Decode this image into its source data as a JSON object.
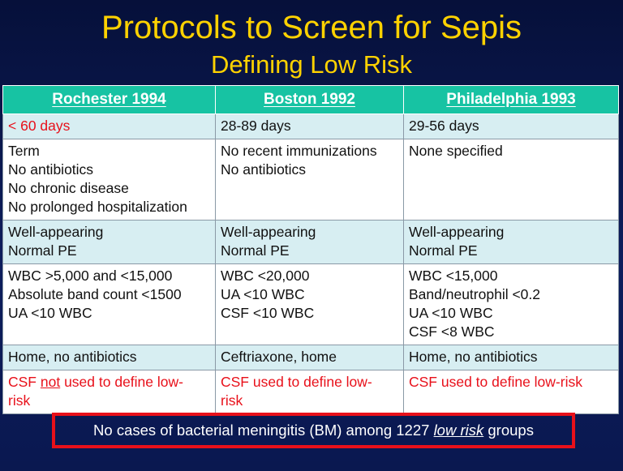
{
  "slide": {
    "title": "Protocols to Screen for Sepis",
    "subtitle": "Defining Low Risk"
  },
  "table": {
    "headers": [
      "Rochester 1994",
      "Boston 1992",
      "Philadelphia 1993"
    ],
    "rows": [
      [
        "< 60 days",
        "28-89 days",
        "29-56 days"
      ],
      [
        "Term\nNo antibiotics\nNo chronic disease\nNo prolonged hospitalization",
        "No recent immunizations\nNo antibiotics",
        "None specified"
      ],
      [
        "Well-appearing\nNormal PE",
        "Well-appearing\nNormal PE",
        "Well-appearing\nNormal PE"
      ],
      [
        "WBC >5,000 and <15,000\nAbsolute band count <1500\nUA <10 WBC",
        "WBC <20,000\nUA <10 WBC\nCSF <10 WBC",
        "WBC <15,000\nBand/neutrophil <0.2\nUA <10 WBC\nCSF <8 WBC"
      ],
      [
        "Home, no antibiotics",
        "Ceftriaxone, home",
        "Home, no antibiotics"
      ],
      [
        "CSF not used to define low-risk",
        "CSF used to define low-risk",
        "CSF used to define low-risk"
      ]
    ],
    "rochester_csf_parts": [
      "CSF ",
      "not",
      " used to define low-\nrisk"
    ],
    "boston_csf": "CSF used to define low-\nrisk"
  },
  "footer": {
    "before": "No cases of bacterial meningitis (BM) among 1227 ",
    "emphasis": "low risk",
    "after": " groups"
  },
  "colors": {
    "title": "#ffd200",
    "header_bg": "#17c3a3",
    "highlight_red": "#e8101a",
    "row_light": "#d7eef2",
    "background": "#0a1540"
  }
}
